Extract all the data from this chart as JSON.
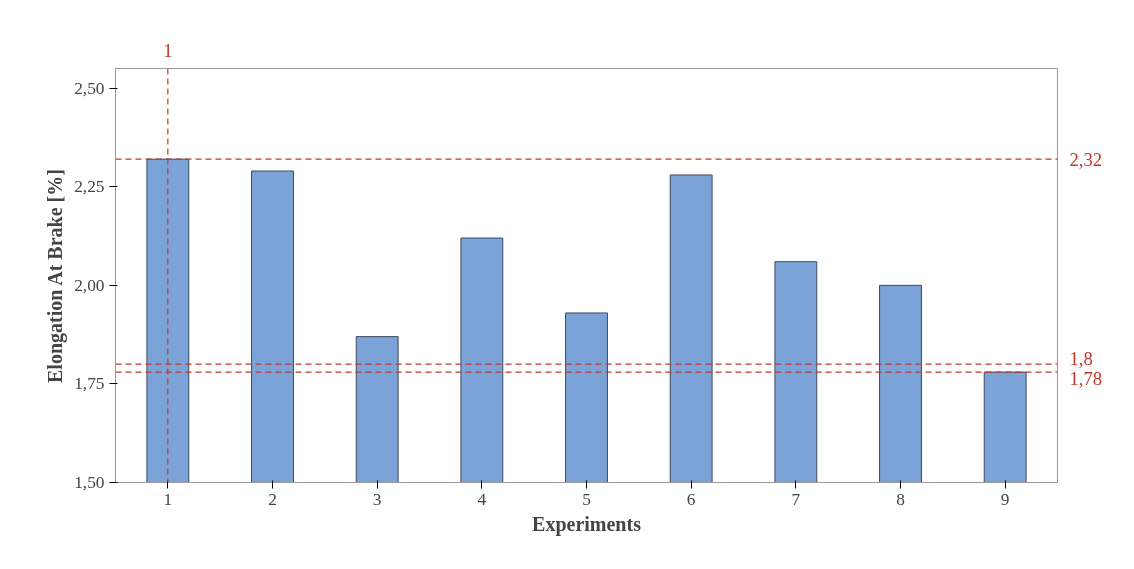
{
  "chart_data": {
    "type": "bar",
    "xlabel": "Experiments",
    "ylabel": "Elongation At Brake [%]",
    "x": [
      1,
      2,
      3,
      4,
      5,
      6,
      7,
      8,
      9
    ],
    "values": [
      2.32,
      2.29,
      1.87,
      2.12,
      1.93,
      2.28,
      2.06,
      2.0,
      1.78
    ],
    "color": "#7ba3d8",
    "xlim": [
      0.5,
      9.5
    ],
    "xticks": [
      1,
      2,
      3,
      4,
      5,
      6,
      7,
      8,
      9
    ],
    "ylim": [
      1.5,
      2.55
    ],
    "yticks": [
      {
        "value": 1.5,
        "label": "1,50"
      },
      {
        "value": 1.75,
        "label": "1,75"
      },
      {
        "value": 2.0,
        "label": "2,00"
      },
      {
        "value": 2.25,
        "label": "2,25"
      },
      {
        "value": 2.5,
        "label": "2,50"
      }
    ],
    "grid": false,
    "ref_lines": [
      {
        "axis": "x",
        "value": 1,
        "label": "1",
        "color": "#c0392b",
        "line_style": "dashed"
      },
      {
        "axis": "y",
        "value": 2.32,
        "label": "2,32",
        "color": "#c0392b",
        "line_style": "dashed"
      },
      {
        "axis": "y",
        "value": 1.8,
        "label": "1,8",
        "color": "#c0392b",
        "line_style": "dashed"
      },
      {
        "axis": "y",
        "value": 1.78,
        "label": "1,78",
        "color": "#c0392b",
        "line_style": "dashed"
      }
    ]
  }
}
